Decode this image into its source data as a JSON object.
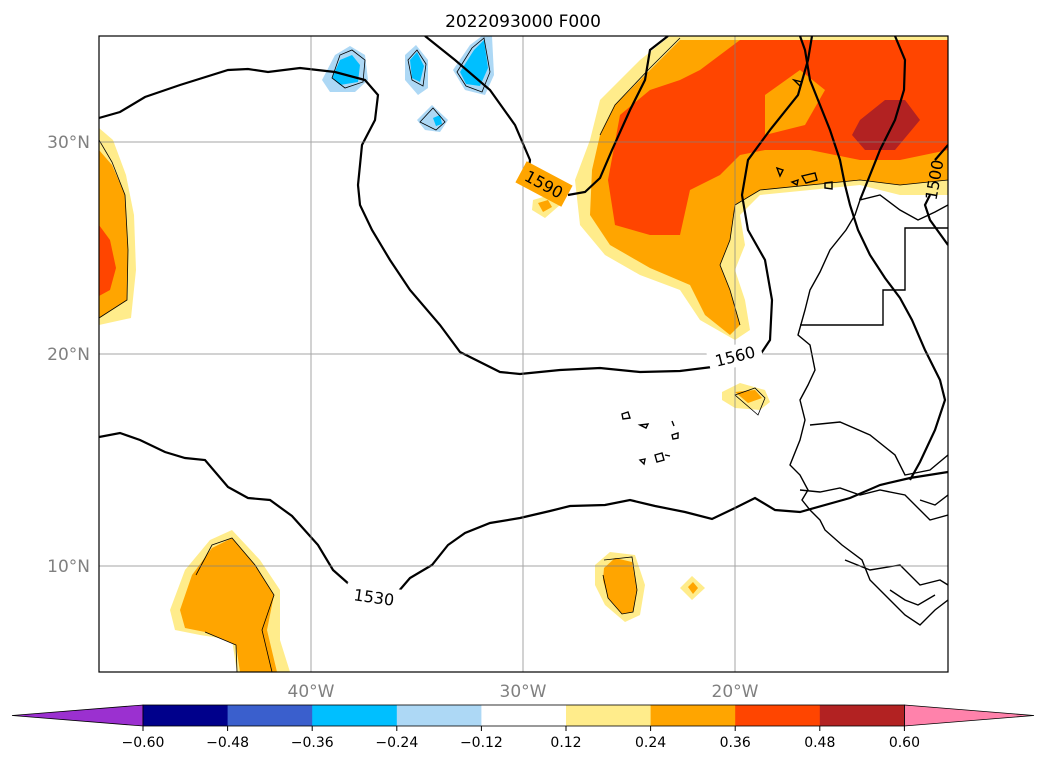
{
  "title": "2022093000 F000",
  "map": {
    "lat_labels": [
      "30°N",
      "20°N",
      "10°N"
    ],
    "lon_labels": [
      "40°W",
      "30°W",
      "20°W"
    ],
    "contour_labels": [
      "1590",
      "1560",
      "1530",
      "1500"
    ]
  },
  "colorbar": {
    "ticks": [
      "−0.60",
      "−0.48",
      "−0.36",
      "−0.24",
      "−0.12",
      "0.12",
      "0.24",
      "0.36",
      "0.48",
      "0.60"
    ],
    "colors": [
      "#9b30d0",
      "#00008b",
      "#3a5fcd",
      "#00bfff",
      "#add8f5",
      "#ffffff",
      "#ffec8b",
      "#ffa500",
      "#ff4500",
      "#b22222",
      "#ff82ab"
    ]
  }
}
